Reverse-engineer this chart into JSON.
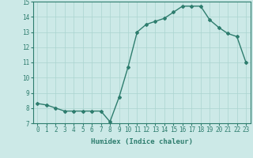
{
  "x": [
    0,
    1,
    2,
    3,
    4,
    5,
    6,
    7,
    8,
    9,
    10,
    11,
    12,
    13,
    14,
    15,
    16,
    17,
    18,
    19,
    20,
    21,
    22,
    23
  ],
  "y": [
    8.3,
    8.2,
    8.0,
    7.8,
    7.8,
    7.8,
    7.8,
    7.8,
    7.1,
    8.7,
    10.7,
    13.0,
    13.5,
    13.7,
    13.9,
    14.3,
    14.7,
    14.7,
    14.7,
    13.8,
    13.3,
    12.9,
    12.7,
    11.0
  ],
  "xlim": [
    -0.5,
    23.5
  ],
  "ylim": [
    7,
    15
  ],
  "yticks": [
    7,
    8,
    9,
    10,
    11,
    12,
    13,
    14,
    15
  ],
  "xticks": [
    0,
    1,
    2,
    3,
    4,
    5,
    6,
    7,
    8,
    9,
    10,
    11,
    12,
    13,
    14,
    15,
    16,
    17,
    18,
    19,
    20,
    21,
    22,
    23
  ],
  "xlabel": "Humidex (Indice chaleur)",
  "line_color": "#2e7d6e",
  "marker": "D",
  "marker_size": 2.0,
  "bg_color": "#cce9e7",
  "grid_color": "#aad4d0",
  "tick_color": "#2e7d6e",
  "label_color": "#2e7d6e",
  "xlabel_fontsize": 6.5,
  "tick_fontsize": 5.5,
  "line_width": 1.0
}
